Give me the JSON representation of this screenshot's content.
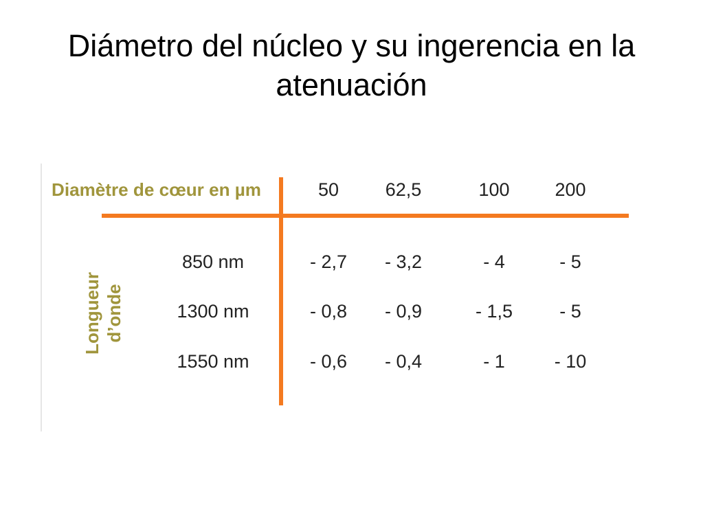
{
  "title": "Diámetro del núcleo y su ingerencia en la atenuación",
  "table": {
    "header_label": "Diamètre de cœur en µm",
    "columns": [
      "50",
      "62,5",
      "100",
      "200"
    ],
    "row_group_label": [
      "Longueur",
      "d’onde"
    ],
    "rows": [
      {
        "label": "850 nm",
        "cells": [
          "- 2,7",
          "- 3,2",
          "- 4",
          "- 5"
        ]
      },
      {
        "label": "1300 nm",
        "cells": [
          "- 0,8",
          "- 0,9",
          "- 1,5",
          "- 5"
        ]
      },
      {
        "label": "1550 nm",
        "cells": [
          "- 0,6",
          "- 0,4",
          "- 1",
          "- 10"
        ]
      }
    ]
  }
}
